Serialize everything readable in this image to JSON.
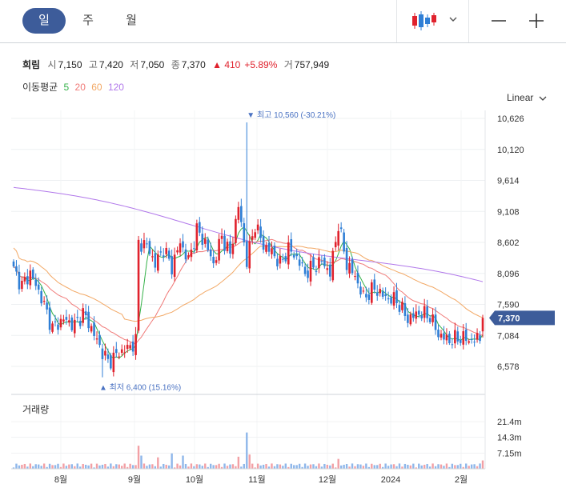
{
  "tabs": [
    "일",
    "주",
    "월"
  ],
  "active_tab": 0,
  "toolbar": {
    "chart_type_icon": "candlestick-icon",
    "zoom_out": "−",
    "zoom_in": "+"
  },
  "stock": {
    "name": "희림",
    "open_label": "시",
    "open": "7,150",
    "high_label": "고",
    "high": "7,420",
    "low_label": "저",
    "low": "7,050",
    "close_label": "종",
    "close": "7,370",
    "change": "▲ 410",
    "change_pct": "+5.89%",
    "volume_label": "거",
    "volume": "757,949"
  },
  "ma_legend": {
    "title": "이동평균",
    "periods": [
      "5",
      "20",
      "60",
      "120"
    ]
  },
  "scale_mode": "Linear",
  "colors": {
    "up": "#e0222d",
    "down": "#2f7fd6",
    "ma5": "#36b24a",
    "ma20": "#f07a78",
    "ma60": "#f2a865",
    "ma120": "#b178ea",
    "accent": "#3d5c9a",
    "marker": "#4a72c2"
  },
  "volume_title": "거래량",
  "chart_data": {
    "type": "candlestick",
    "y_ticks": [
      10626,
      10120,
      9614,
      9108,
      8602,
      8096,
      7590,
      7084,
      6578
    ],
    "y_tick_labels": [
      "10,626",
      "10,120",
      "9,614",
      "9,108",
      "8,602",
      "8,096",
      "7,590",
      "7,084",
      "6,578"
    ],
    "x_tick_labels": [
      "8월",
      "9월",
      "10월",
      "11월",
      "12월",
      "2024",
      "2월"
    ],
    "current_price_label": "7,370",
    "current_price": 7370,
    "max_marker": {
      "label": "최고",
      "text": "10,560 (-30.21%)",
      "value": 10560
    },
    "min_marker": {
      "label": "최저",
      "text": "6,400 (15.16%)",
      "value": 6400
    },
    "series_names": [
      "5",
      "20",
      "60",
      "120"
    ],
    "ohlc_keypoints": [
      [
        0,
        8150
      ],
      [
        3,
        7900
      ],
      [
        6,
        8100
      ],
      [
        10,
        7700
      ],
      [
        14,
        7200
      ],
      [
        18,
        7350
      ],
      [
        22,
        7250
      ],
      [
        25,
        7450
      ],
      [
        28,
        7200
      ],
      [
        31,
        6900
      ],
      [
        34,
        6650
      ],
      [
        38,
        6800
      ],
      [
        42,
        6900
      ],
      [
        44,
        7000
      ],
      [
        45,
        8600
      ],
      [
        48,
        8550
      ],
      [
        51,
        8250
      ],
      [
        54,
        8500
      ],
      [
        57,
        8200
      ],
      [
        60,
        8600
      ],
      [
        63,
        8300
      ],
      [
        66,
        8800
      ],
      [
        69,
        8600
      ],
      [
        72,
        8250
      ],
      [
        75,
        8700
      ],
      [
        78,
        8400
      ],
      [
        81,
        9200
      ],
      [
        84,
        8300
      ],
      [
        87,
        8900
      ],
      [
        90,
        8550
      ],
      [
        93,
        8450
      ],
      [
        96,
        8250
      ],
      [
        99,
        8500
      ],
      [
        102,
        8350
      ],
      [
        105,
        8100
      ],
      [
        108,
        8200
      ],
      [
        111,
        8300
      ],
      [
        114,
        8100
      ],
      [
        117,
        8900
      ],
      [
        120,
        8250
      ],
      [
        123,
        8050
      ],
      [
        126,
        7700
      ],
      [
        130,
        7850
      ],
      [
        134,
        7700
      ],
      [
        138,
        7650
      ],
      [
        142,
        7350
      ],
      [
        146,
        7450
      ],
      [
        150,
        7400
      ],
      [
        153,
        7100
      ],
      [
        157,
        7000
      ],
      [
        161,
        7050
      ],
      [
        165,
        7000
      ],
      [
        168,
        7050
      ],
      [
        169,
        7370
      ]
    ],
    "volume_axis_labels": [
      "21.4m",
      "14.3m",
      "7.15m"
    ],
    "volume_axis_values": [
      21.4,
      14.3,
      7.15
    ]
  }
}
